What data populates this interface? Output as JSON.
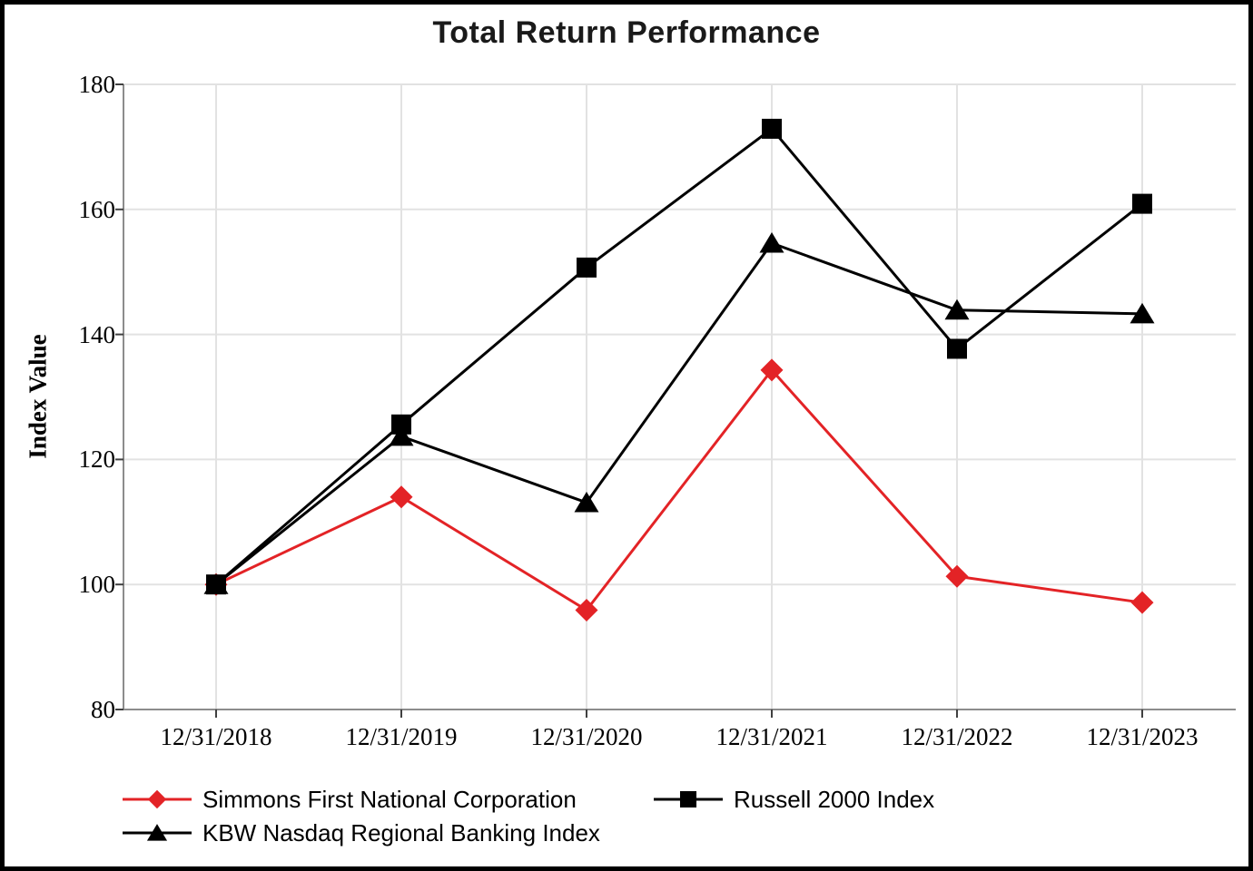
{
  "chart_data": {
    "type": "line",
    "title": "Total Return Performance",
    "xlabel": "",
    "ylabel": "Index Value",
    "ylim": [
      80,
      180
    ],
    "yticks": [
      80,
      100,
      120,
      140,
      160,
      180
    ],
    "grid": true,
    "gridline_color": "#e2e2e2",
    "axis_color": "#8c8c8c",
    "tick_color": "#404040",
    "legend_position": "bottom",
    "categories": [
      "12/31/2018",
      "12/31/2019",
      "12/31/2020",
      "12/31/2021",
      "12/31/2022",
      "12/31/2023"
    ],
    "series": [
      {
        "name": "Simmons First National Corporation",
        "color": "#e32326",
        "marker": "diamond",
        "marker_icon": "diamond-icon",
        "values": [
          100,
          114.0,
          95.9,
          134.3,
          101.3,
          97.1
        ]
      },
      {
        "name": "Russell 2000 Index",
        "color": "#000000",
        "marker": "square",
        "marker_icon": "square-icon",
        "values": [
          100,
          125.6,
          150.7,
          172.9,
          137.7,
          160.9
        ]
      },
      {
        "name": "KBW Nasdaq Regional Banking Index",
        "color": "#000000",
        "marker": "triangle",
        "marker_icon": "triangle-icon",
        "values": [
          100,
          123.7,
          113.1,
          154.6,
          143.9,
          143.3
        ]
      }
    ]
  }
}
